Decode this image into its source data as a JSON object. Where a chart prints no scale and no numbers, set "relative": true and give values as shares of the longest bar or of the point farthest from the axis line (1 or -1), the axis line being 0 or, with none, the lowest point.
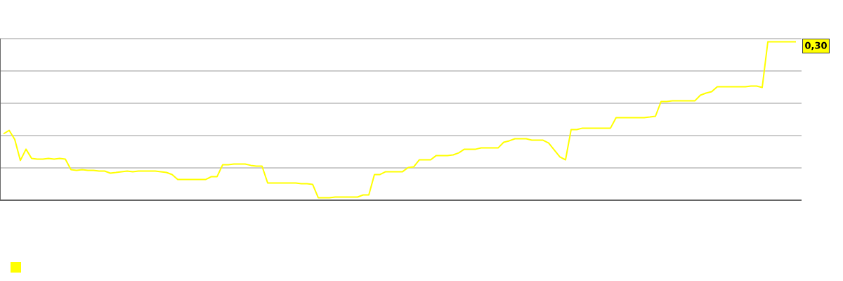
{
  "chart_data": {
    "type": "line",
    "relative": true,
    "color": "#ffff00",
    "grid": "y",
    "categories": [
      null,
      null,
      null,
      null,
      null,
      null,
      null,
      null,
      null,
      null,
      null,
      null,
      null,
      null,
      null,
      null,
      null,
      null,
      null,
      null,
      null,
      null,
      null,
      null,
      null,
      null,
      null,
      null,
      null,
      null,
      null,
      null,
      null,
      null,
      null,
      null,
      null,
      null,
      null,
      null,
      null,
      null,
      null,
      null,
      null,
      null,
      null,
      null,
      null,
      null,
      null,
      null,
      null,
      null,
      null,
      null,
      null,
      null,
      null,
      null,
      null,
      null,
      null,
      null,
      null,
      null,
      null,
      null,
      null,
      null,
      null,
      null,
      null,
      null,
      null,
      null,
      null,
      null,
      null,
      null,
      null,
      null,
      null,
      null,
      null,
      null,
      null,
      null,
      null,
      null,
      null,
      null,
      null,
      null,
      null,
      null,
      null,
      null,
      null,
      null,
      null,
      null,
      null,
      null,
      null,
      null,
      null,
      null,
      null,
      null,
      null,
      null,
      null,
      null,
      null,
      null,
      null,
      null,
      null,
      null,
      null,
      null,
      null,
      null,
      null,
      null,
      null,
      null,
      null,
      null,
      null,
      null,
      null,
      null,
      null,
      null,
      null,
      null,
      null,
      null,
      null,
      null
    ],
    "values": [
      0.419,
      0.441,
      0.384,
      0.251,
      0.322,
      0.264,
      0.259,
      0.259,
      0.264,
      0.259,
      0.264,
      0.259,
      0.193,
      0.188,
      0.193,
      0.188,
      0.188,
      0.184,
      0.184,
      0.171,
      0.175,
      0.18,
      0.184,
      0.18,
      0.184,
      0.184,
      0.184,
      0.184,
      0.18,
      0.175,
      0.162,
      0.131,
      0.131,
      0.131,
      0.131,
      0.131,
      0.131,
      0.149,
      0.149,
      0.224,
      0.224,
      0.228,
      0.228,
      0.228,
      0.22,
      0.215,
      0.215,
      0.109,
      0.109,
      0.109,
      0.109,
      0.109,
      0.109,
      0.104,
      0.104,
      0.1,
      0.016,
      0.016,
      0.016,
      0.02,
      0.02,
      0.02,
      0.02,
      0.02,
      0.033,
      0.033,
      0.162,
      0.162,
      0.18,
      0.18,
      0.18,
      0.18,
      0.206,
      0.211,
      0.255,
      0.255,
      0.255,
      0.282,
      0.282,
      0.282,
      0.286,
      0.299,
      0.322,
      0.322,
      0.322,
      0.33,
      0.33,
      0.33,
      0.33,
      0.366,
      0.375,
      0.388,
      0.388,
      0.388,
      0.379,
      0.379,
      0.379,
      0.361,
      0.317,
      0.273,
      0.255,
      0.446,
      0.446,
      0.455,
      0.455,
      0.455,
      0.455,
      0.455,
      0.455,
      0.521,
      0.521,
      0.521,
      0.521,
      0.521,
      0.521,
      0.525,
      0.53,
      0.623,
      0.623,
      0.627,
      0.627,
      0.627,
      0.627,
      0.627,
      0.663,
      0.676,
      0.685,
      0.716,
      0.716,
      0.716,
      0.716,
      0.716,
      0.716,
      0.721,
      0.721,
      0.712,
      1,
      1,
      1,
      1,
      1,
      1
    ],
    "annotations": [
      "0,30"
    ]
  }
}
